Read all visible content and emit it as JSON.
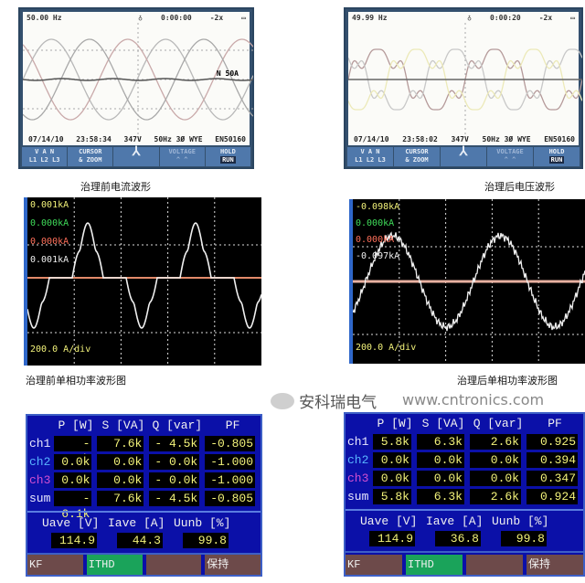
{
  "top_left": {
    "freq": "50.00 Hz",
    "time": "0:00:00",
    "zoom": "-2x",
    "date": "07/14/10",
    "clock": "23:58:34",
    "volt": "347V",
    "config": "50Hz 3Ø WYE",
    "std": "EN50160",
    "marker": "N 50A",
    "keys": [
      "V A N\nL1 L2 L3",
      "CURSOR\n& ZOOM",
      "",
      "VOLTAGE\n^ ^",
      "HOLD"
    ],
    "run": "RUN"
  },
  "top_right": {
    "freq": "49.99 Hz",
    "time": "0:00:20",
    "zoom": "-2x",
    "date": "07/14/10",
    "clock": "23:58:02",
    "volt": "347V",
    "config": "50Hz 3Ø WYE",
    "std": "EN50160",
    "keys": [
      "V A N\nL1 L2 L3",
      "CURSOR\n& ZOOM",
      "",
      "VOLTAGE\n^ ^",
      "HOLD"
    ],
    "run": "RUN"
  },
  "captions": {
    "top_left": "治理前电流波形",
    "top_right": "治理后电压波形",
    "mid_left": "治理前单相功率波形图",
    "mid_right": "治理后单相功率波形图"
  },
  "mid_left": {
    "labels": [
      "0.001kA",
      "0.000kA",
      "0.000kA",
      "0.001kA"
    ],
    "scale": "200.0 A/div"
  },
  "mid_right": {
    "labels": [
      "-0.098kA",
      "0.000kA",
      "0.000kA",
      "-0.097kA"
    ],
    "scale": "200.0 A/div"
  },
  "colors": {
    "yellow": "#f2f27a",
    "green": "#3fdc5a",
    "red": "#ff6f5a",
    "ch2": "#58b4ff",
    "ch3": "#d04fd0"
  },
  "table_headers": [
    "P [W]",
    "S [VA]",
    "Q [var]",
    "PF"
  ],
  "avg_headers": [
    "Uave [V]",
    "Iave [A]",
    "Uunb [%]"
  ],
  "bottom_left": {
    "rows": [
      {
        "ch": "ch1",
        "p": "- 6.1k",
        "s": "7.6k",
        "q": "- 4.5k",
        "pf": "-0.805"
      },
      {
        "ch": "ch2",
        "p": "0.0k",
        "s": "0.0k",
        "q": "- 0.0k",
        "pf": "-1.000"
      },
      {
        "ch": "ch3",
        "p": "0.0k",
        "s": "0.0k",
        "q": "- 0.0k",
        "pf": "-1.000"
      },
      {
        "ch": "sum",
        "p": "- 6.1k",
        "s": "7.6k",
        "q": "- 4.5k",
        "pf": "-0.805"
      }
    ],
    "avg": [
      "114.9",
      "44.3",
      "99.8"
    ],
    "softkeys": [
      "KF",
      "ITHD",
      "",
      "保持"
    ]
  },
  "bottom_right": {
    "rows": [
      {
        "ch": "ch1",
        "p": "5.8k",
        "s": "6.3k",
        "q": "2.6k",
        "pf": "0.925"
      },
      {
        "ch": "ch2",
        "p": "0.0k",
        "s": "0.0k",
        "q": "0.0k",
        "pf": "0.394"
      },
      {
        "ch": "ch3",
        "p": "0.0k",
        "s": "0.0k",
        "q": "0.0k",
        "pf": "0.347"
      },
      {
        "ch": "sum",
        "p": "5.8k",
        "s": "6.3k",
        "q": "2.6k",
        "pf": "0.924"
      }
    ],
    "avg": [
      "114.9",
      "36.8",
      "99.8"
    ],
    "softkeys": [
      "KF",
      "ITHD",
      "",
      "保持"
    ]
  },
  "watermark": {
    "name": "安科瑞电气",
    "url": "www.cntronics.com"
  }
}
